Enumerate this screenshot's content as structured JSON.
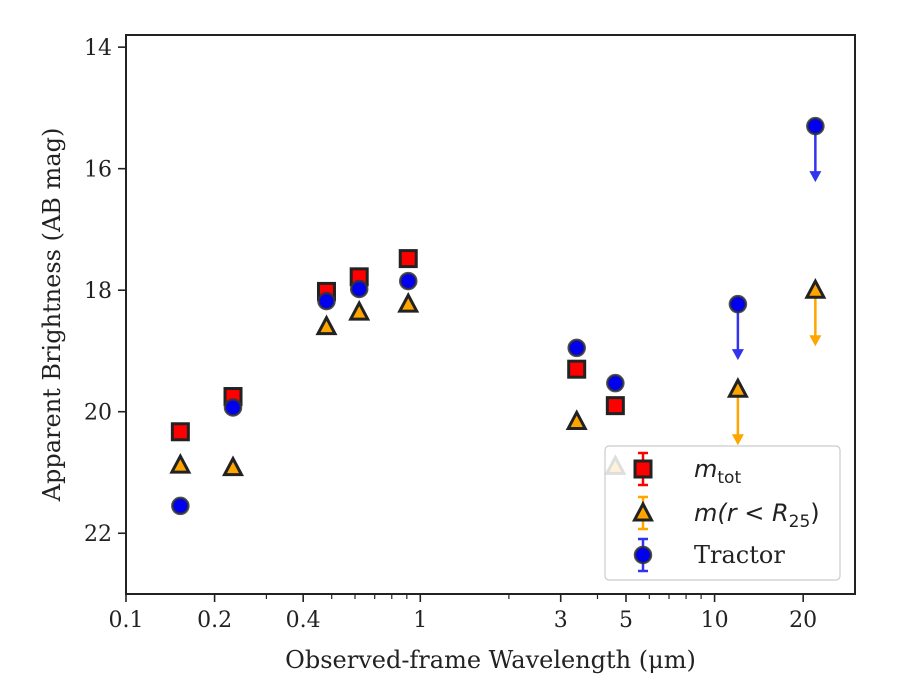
{
  "chart_data": {
    "type": "scatter",
    "xlabel": "Observed-frame Wavelength (μm)",
    "ylabel": "Apparent Brightness (AB mag)",
    "xscale": "log",
    "xlim": [
      0.1,
      30
    ],
    "ylim": [
      23,
      13.8
    ],
    "y_inverted": true,
    "xticks": [
      {
        "value": 0.1,
        "label": "0.1"
      },
      {
        "value": 0.2,
        "label": "0.2"
      },
      {
        "value": 0.4,
        "label": "0.4"
      },
      {
        "value": 1,
        "label": "1"
      },
      {
        "value": 3,
        "label": "3"
      },
      {
        "value": 5,
        "label": "5"
      },
      {
        "value": 10,
        "label": "10"
      },
      {
        "value": 20,
        "label": "20"
      }
    ],
    "yticks": [
      {
        "value": 14,
        "label": "14"
      },
      {
        "value": 16,
        "label": "16"
      },
      {
        "value": 18,
        "label": "18"
      },
      {
        "value": 20,
        "label": "20"
      },
      {
        "value": 22,
        "label": "22"
      }
    ],
    "legend_position": "lower-right",
    "series": [
      {
        "name_main": "m",
        "name_sub": "tot",
        "marker": "square",
        "color": "#ff0000",
        "edge_color": "#222222",
        "x": [
          0.153,
          0.231,
          0.48,
          0.62,
          0.91,
          3.4,
          4.6
        ],
        "y": [
          20.33,
          19.75,
          18.02,
          17.78,
          17.48,
          19.3,
          19.9
        ],
        "upper_limit": [
          false,
          false,
          false,
          false,
          false,
          false,
          false
        ]
      },
      {
        "name_main": "m(r < R",
        "name_sub": "25",
        "name_tail": ")",
        "marker": "triangle",
        "color": "#ffa500",
        "edge_color": "#222222",
        "x": [
          0.153,
          0.231,
          0.48,
          0.62,
          0.91,
          3.4,
          4.6,
          12.0,
          22.0
        ],
        "y": [
          20.88,
          20.92,
          18.6,
          18.36,
          18.23,
          20.16,
          20.9,
          19.63,
          18.0
        ],
        "upper_limit": [
          false,
          false,
          false,
          false,
          false,
          false,
          false,
          true,
          true
        ]
      },
      {
        "name_main": "Tractor",
        "marker": "circle",
        "color": "#0000ee",
        "edge_color": "#333333",
        "x": [
          0.153,
          0.231,
          0.48,
          0.62,
          0.91,
          3.4,
          4.6,
          12.0,
          22.0
        ],
        "y": [
          21.55,
          19.93,
          18.18,
          17.98,
          17.85,
          18.95,
          19.53,
          18.23,
          15.3
        ],
        "upper_limit": [
          false,
          false,
          false,
          false,
          false,
          false,
          false,
          true,
          true
        ]
      }
    ]
  }
}
